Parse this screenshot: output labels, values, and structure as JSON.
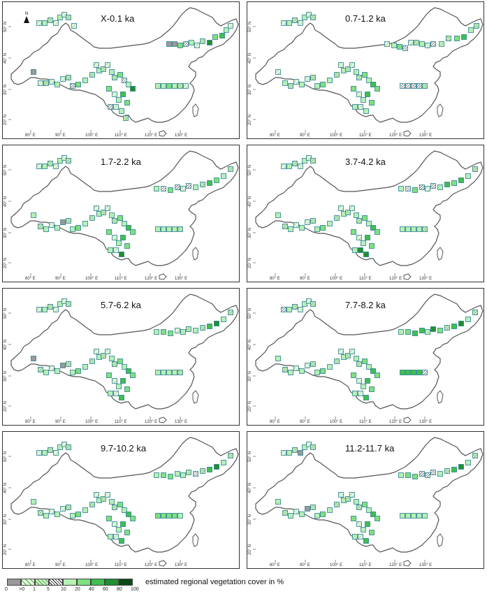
{
  "panels": [
    {
      "title": "X-0.1 ka"
    },
    {
      "title": "0.7-1.2 ka"
    },
    {
      "title": "1.7-2.2 ka"
    },
    {
      "title": "3.7-4.2 ka"
    },
    {
      "title": "5.7-6.2 ka"
    },
    {
      "title": "7.7-8.2 ka"
    },
    {
      "title": "9.7-10.2 ka"
    },
    {
      "title": "11.2-11.7 ka"
    }
  ],
  "north_label": "N",
  "lon_labels": [
    "80° E",
    "90° E",
    "100° E",
    "110° E",
    "120° E",
    "130° E"
  ],
  "lat_labels": [
    "20° N",
    "30° N",
    "40° N",
    "50° N"
  ],
  "legend": {
    "title": "estimated regional vegetation cover in %",
    "ticks": [
      "0",
      ">0",
      "1",
      "5",
      "10",
      "20",
      "40",
      "60",
      "80",
      "100"
    ],
    "classes": [
      {
        "name": "0",
        "color": "#999999",
        "pattern": "solid"
      },
      {
        "name": ">0-1",
        "color": "#e6f7df",
        "pattern": "hatch-light"
      },
      {
        "name": "1-5",
        "color": "#c8ecc0",
        "pattern": "hatch-medium"
      },
      {
        "name": "5-10",
        "color": "#ffffff",
        "pattern": "hatch-dense"
      },
      {
        "name": "10-20",
        "color": "#b5f0b5",
        "pattern": "solid"
      },
      {
        "name": "20-40",
        "color": "#7ee07e",
        "pattern": "solid"
      },
      {
        "name": "40-60",
        "color": "#3fbf4f",
        "pattern": "solid"
      },
      {
        "name": "60-80",
        "color": "#1f8f30",
        "pattern": "solid"
      },
      {
        "name": "80-100",
        "color": "#0b4a16",
        "pattern": "solid"
      }
    ]
  }
}
